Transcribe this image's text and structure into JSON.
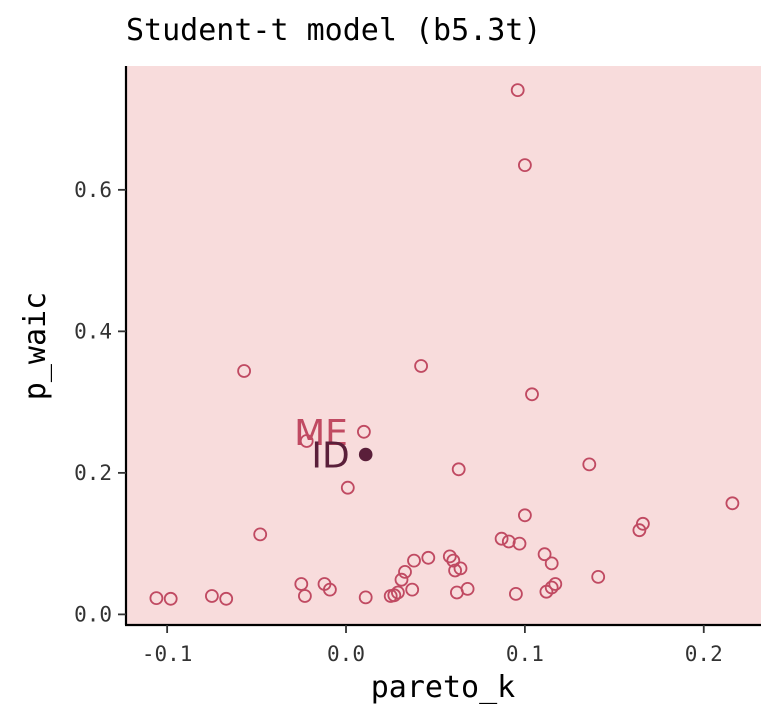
{
  "chart_data": {
    "type": "scatter",
    "title": "Student-t model (b5.3t)",
    "xlabel": "pareto_k",
    "ylabel": "p_waic",
    "xlim": [
      -0.123,
      0.232
    ],
    "ylim": [
      -0.015,
      0.775
    ],
    "x_ticks": [
      -0.1,
      0.0,
      0.1,
      0.2
    ],
    "x_tick_labels": [
      "-0.1",
      "0.0",
      "0.1",
      "0.2"
    ],
    "y_ticks": [
      0.0,
      0.2,
      0.4,
      0.6
    ],
    "y_tick_labels": [
      "0.0",
      "0.2",
      "0.4",
      "0.6"
    ],
    "grid": false,
    "colors": {
      "panel_background": "#f8dcdc",
      "open_points": "#c04a62",
      "highlight_point": "#5a1f3a",
      "label_ME": "#c04a62",
      "label_ID": "#5a1f3a"
    },
    "series": [
      {
        "marker": "open-circle",
        "points": [
          [
            0.096,
            0.741
          ],
          [
            0.1,
            0.635
          ],
          [
            -0.057,
            0.344
          ],
          [
            0.042,
            0.351
          ],
          [
            0.104,
            0.311
          ],
          [
            0.01,
            0.258
          ],
          [
            -0.022,
            0.245
          ],
          [
            0.063,
            0.205
          ],
          [
            0.136,
            0.212
          ],
          [
            0.001,
            0.179
          ],
          [
            -0.048,
            0.113
          ],
          [
            0.1,
            0.14
          ],
          [
            0.216,
            0.157
          ],
          [
            0.166,
            0.128
          ],
          [
            0.164,
            0.119
          ],
          [
            0.087,
            0.107
          ],
          [
            0.091,
            0.103
          ],
          [
            0.097,
            0.1
          ],
          [
            0.111,
            0.085
          ],
          [
            0.115,
            0.072
          ],
          [
            0.038,
            0.076
          ],
          [
            0.046,
            0.08
          ],
          [
            0.058,
            0.082
          ],
          [
            0.06,
            0.076
          ],
          [
            0.061,
            0.062
          ],
          [
            0.064,
            0.065
          ],
          [
            0.033,
            0.06
          ],
          [
            0.031,
            0.049
          ],
          [
            -0.025,
            0.043
          ],
          [
            -0.012,
            0.043
          ],
          [
            -0.009,
            0.035
          ],
          [
            0.037,
            0.035
          ],
          [
            0.029,
            0.031
          ],
          [
            0.027,
            0.027
          ],
          [
            0.025,
            0.026
          ],
          [
            0.011,
            0.024
          ],
          [
            -0.023,
            0.026
          ],
          [
            0.062,
            0.031
          ],
          [
            0.068,
            0.036
          ],
          [
            0.095,
            0.029
          ],
          [
            0.112,
            0.032
          ],
          [
            0.115,
            0.038
          ],
          [
            0.117,
            0.043
          ],
          [
            0.141,
            0.053
          ],
          [
            -0.106,
            0.023
          ],
          [
            -0.098,
            0.022
          ],
          [
            -0.075,
            0.026
          ],
          [
            -0.067,
            0.022
          ]
        ]
      },
      {
        "marker": "filled-circle",
        "points": [
          [
            0.011,
            0.226
          ]
        ]
      }
    ],
    "annotations": [
      {
        "text": "ME",
        "x": 0.01,
        "y": 0.258,
        "color": "#c04a62"
      },
      {
        "text": "ID",
        "x": 0.011,
        "y": 0.226,
        "color": "#5a1f3a"
      }
    ]
  }
}
